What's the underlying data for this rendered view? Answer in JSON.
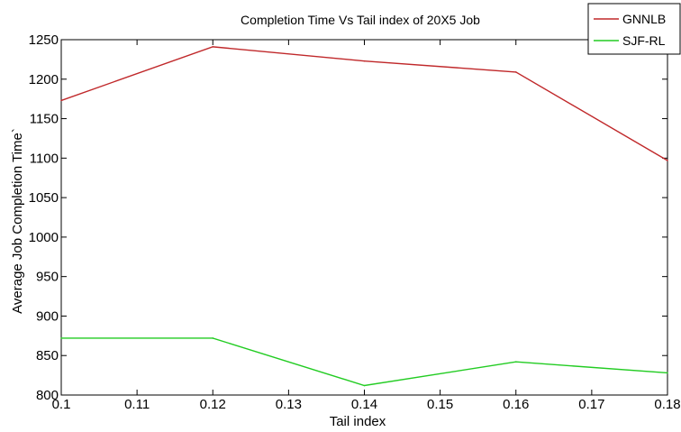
{
  "chart_data": {
    "type": "line",
    "title": "Completion Time Vs Tail index of 20X5 Job",
    "xlabel": "Tail index",
    "ylabel": "Average Job Completion Time`",
    "xlim": [
      0.1,
      0.18
    ],
    "ylim": [
      800,
      1250
    ],
    "xticks": [
      "0.1",
      "0.11",
      "0.12",
      "0.13",
      "0.14",
      "0.15",
      "0.16",
      "0.17",
      "0.18"
    ],
    "yticks": [
      "800",
      "850",
      "900",
      "950",
      "1000",
      "1050",
      "1100",
      "1150",
      "1200",
      "1250"
    ],
    "grid": false,
    "legend_position": "top-right",
    "series": [
      {
        "name": "GNNLB",
        "color": "#c0282a",
        "x": [
          0.1,
          0.12,
          0.14,
          0.16,
          0.18
        ],
        "y": [
          1173,
          1241,
          1223,
          1209,
          1097
        ]
      },
      {
        "name": "SJF-RL",
        "color": "#22cc22",
        "x": [
          0.1,
          0.12,
          0.14,
          0.16,
          0.18
        ],
        "y": [
          872,
          872,
          812,
          842,
          828
        ]
      }
    ]
  }
}
